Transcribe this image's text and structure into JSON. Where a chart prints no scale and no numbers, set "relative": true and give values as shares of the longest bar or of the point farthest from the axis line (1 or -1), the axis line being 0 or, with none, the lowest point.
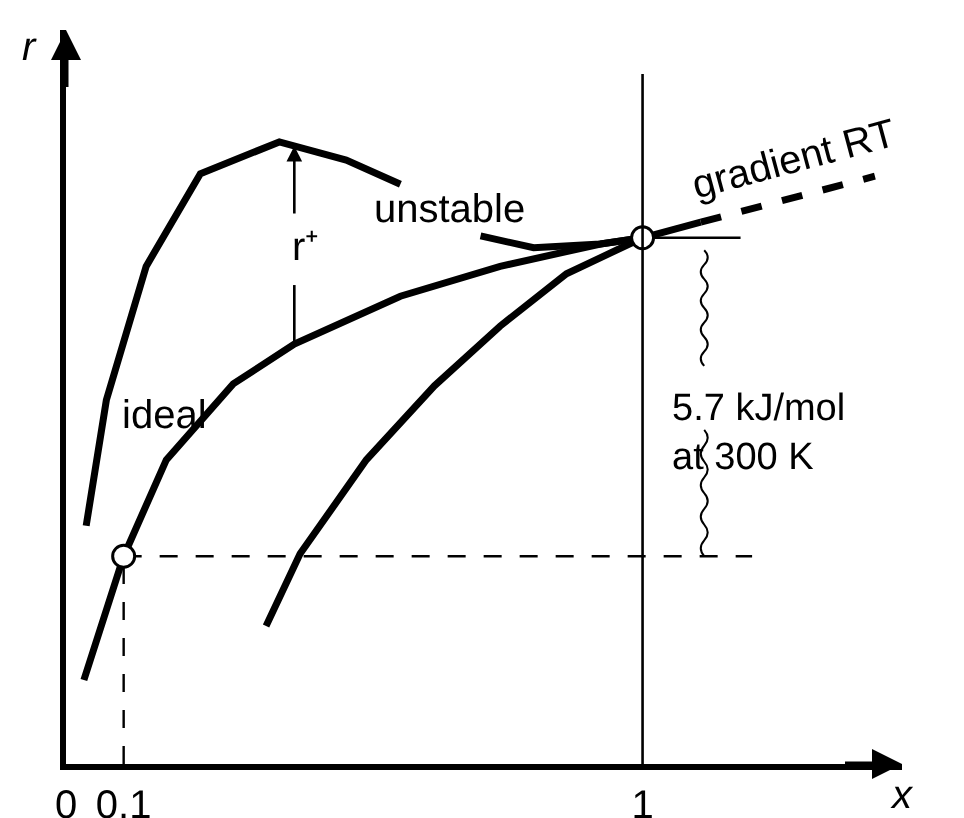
{
  "chart_data": {
    "type": "line",
    "relative": true,
    "xlabel": "x",
    "ylabel": "r",
    "xlim": [
      0,
      1.45
    ],
    "xticks": [
      0,
      0.1,
      1
    ],
    "grid": false,
    "legend": false,
    "marker": "none",
    "series": [
      {
        "name": "ideal",
        "color": "#000000",
        "x": [
          0.031,
          0.1,
          0.174,
          0.29,
          0.396,
          0.58,
          0.753,
          0.927,
          1
        ],
        "values": [
          0.135,
          0.334,
          0.489,
          0.611,
          0.675,
          0.752,
          0.8,
          0.836,
          0.846
        ]
      },
      {
        "name": "unstable",
        "color": "#000000",
        "x": [
          0.035,
          0.07,
          0.139,
          0.233,
          0.37,
          0.486,
          0.58,
          0.65,
          0.719,
          0.811,
          0.927,
          1
        ],
        "values": [
          0.383,
          0.585,
          0.8,
          0.949,
          1,
          0.971,
          0.932,
          null,
          0.849,
          0.83,
          0.836,
          0.846
        ]
      },
      {
        "color": "#000000",
        "x": [
          0.347,
          0.406,
          0.521,
          0.639,
          0.753,
          0.868,
          1
        ],
        "values": [
          0.222,
          0.338,
          0.489,
          0.608,
          0.704,
          0.788,
          0.846
        ]
      },
      {
        "color": "#000000",
        "x": [
          1,
          1.101
        ],
        "values": [
          0.846,
          0.871
        ]
      },
      {
        "name": "gradient RT",
        "color": "#000000",
        "line_style": "dashed",
        "x": [
          1.101,
          1.403
        ],
        "values": [
          0.871,
          0.945
        ]
      },
      {
        "color": "#000000",
        "x": [
          1,
          1.17
        ],
        "values": [
          0.846,
          0.846
        ]
      },
      {
        "color": "#000000",
        "line_style": "dashed",
        "x": [
          0.1,
          1.19
        ],
        "values": [
          0.334,
          0.334
        ]
      },
      {
        "color": "#000000",
        "line_style": "dashed",
        "x": [
          0.1,
          0.1
        ],
        "values": [
          0,
          0.334
        ]
      },
      {
        "type": "scatter",
        "color": "#000000",
        "marker": "circle",
        "x": [
          0.1,
          1
        ],
        "values": [
          0.334,
          0.846
        ]
      }
    ],
    "ref_lines": [
      {
        "axis": "x",
        "value": 1,
        "color": "#000000"
      }
    ],
    "annotations": [
      "r⁺",
      "5.7 kJ/mol\nat 300 K"
    ]
  }
}
